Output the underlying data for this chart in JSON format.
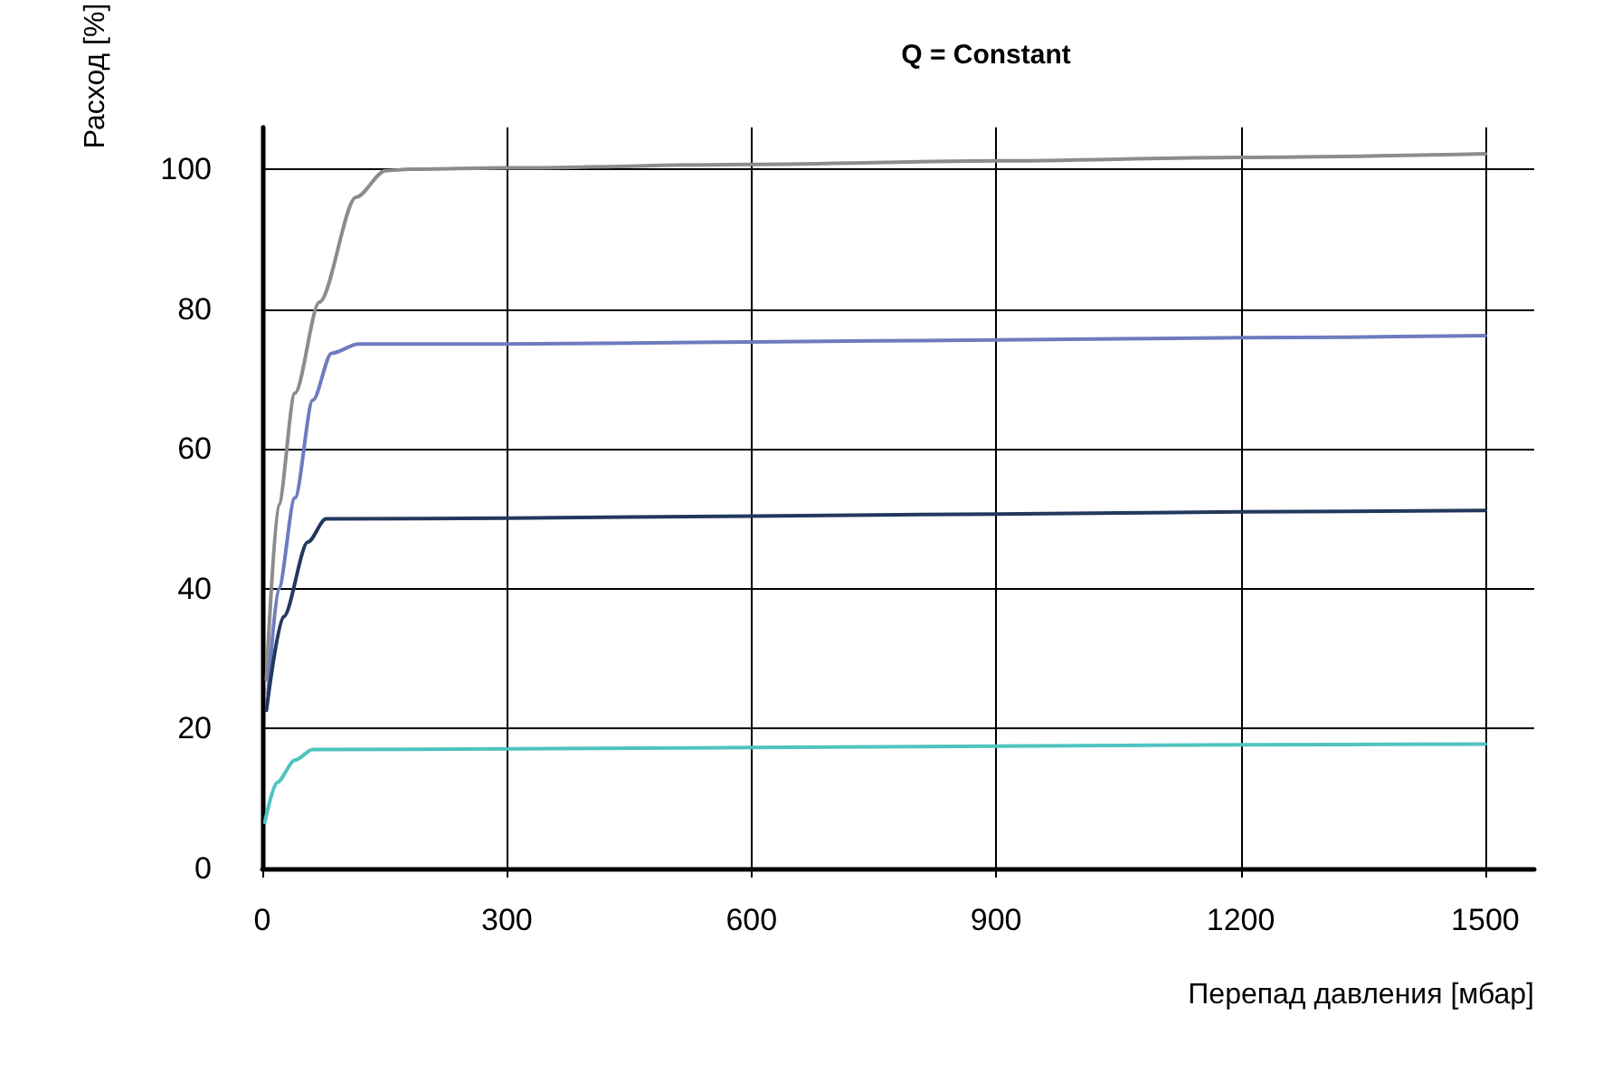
{
  "chart_data": {
    "type": "line",
    "title": "Q = Constant",
    "xlabel": "Перепад давления [мбар]",
    "ylabel": "Расход [%]",
    "series": [
      {
        "color": "#8c8c8c",
        "x": [
          5,
          20,
          40,
          70,
          115,
          151,
          181,
          300,
          600,
          900,
          1200,
          1500
        ],
        "values": [
          27,
          52,
          68,
          81,
          96,
          99.8,
          100,
          100.2,
          100.7,
          101.2,
          101.7,
          102.2
        ]
      },
      {
        "color": "#6f7bbf",
        "x": [
          7,
          20,
          40,
          62,
          85,
          118,
          300,
          600,
          900,
          1200,
          1500
        ],
        "values": [
          25,
          40,
          53,
          67,
          73.7,
          75,
          75,
          75.3,
          75.6,
          75.9,
          76.2
        ]
      },
      {
        "color": "#22385e",
        "x": [
          5,
          26,
          56,
          78,
          300,
          600,
          900,
          1200,
          1500
        ],
        "values": [
          22.6,
          36,
          46.7,
          50,
          50.1,
          50.4,
          50.7,
          51,
          51.2
        ]
      },
      {
        "color": "#4fc4bf",
        "x": [
          3,
          18,
          40,
          62,
          300,
          600,
          900,
          1200,
          1500
        ],
        "values": [
          6.6,
          12.3,
          15.5,
          17,
          17.1,
          17.3,
          17.5,
          17.7,
          17.8
        ]
      }
    ],
    "xlim": [
      0,
      1560
    ],
    "xticks": [
      0,
      300,
      600,
      900,
      1200,
      1500
    ],
    "ylim": [
      0,
      106
    ],
    "yticks": [
      0,
      20,
      40,
      60,
      80,
      100
    ],
    "grid": true,
    "marker": "none",
    "line_style": "solid"
  }
}
